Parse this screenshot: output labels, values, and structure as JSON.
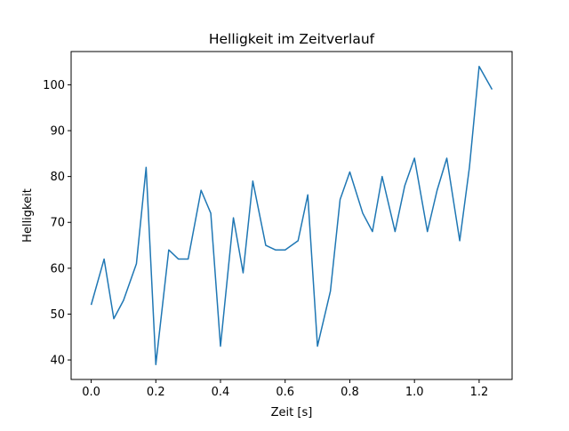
{
  "chart_data": {
    "type": "line",
    "title": "Helligkeit im Zeitverlauf",
    "xlabel": "Zeit [s]",
    "ylabel": "Helligkeit",
    "xlim": [
      -0.062,
      1.302
    ],
    "ylim": [
      35.75,
      107.25
    ],
    "xticks": [
      0.0,
      0.2,
      0.4,
      0.6,
      0.8,
      1.0,
      1.2
    ],
    "xtick_labels": [
      "0.0",
      "0.2",
      "0.4",
      "0.6",
      "0.8",
      "1.0",
      "1.2"
    ],
    "yticks": [
      40,
      50,
      60,
      70,
      80,
      90,
      100
    ],
    "ytick_labels": [
      "40",
      "50",
      "60",
      "70",
      "80",
      "90",
      "100"
    ],
    "grid": false,
    "line_color": "#1f77b4",
    "series": [
      {
        "x": [
          0.0,
          0.04,
          0.07,
          0.1,
          0.14,
          0.17,
          0.2,
          0.24,
          0.27,
          0.3,
          0.34,
          0.37,
          0.4,
          0.44,
          0.47,
          0.5,
          0.54,
          0.57,
          0.6,
          0.64,
          0.67,
          0.7,
          0.74,
          0.77,
          0.8,
          0.84,
          0.87,
          0.9,
          0.94,
          0.97,
          1.0,
          1.04,
          1.07,
          1.1,
          1.14,
          1.17,
          1.2,
          1.24
        ],
        "y": [
          52,
          62,
          49,
          53,
          61,
          82,
          39,
          64,
          62,
          62,
          77,
          72,
          43,
          71,
          59,
          79,
          65,
          64,
          64,
          66,
          76,
          43,
          55,
          75,
          81,
          72,
          68,
          80,
          68,
          78,
          84,
          68,
          77,
          84,
          66,
          82,
          104,
          99
        ]
      }
    ]
  }
}
